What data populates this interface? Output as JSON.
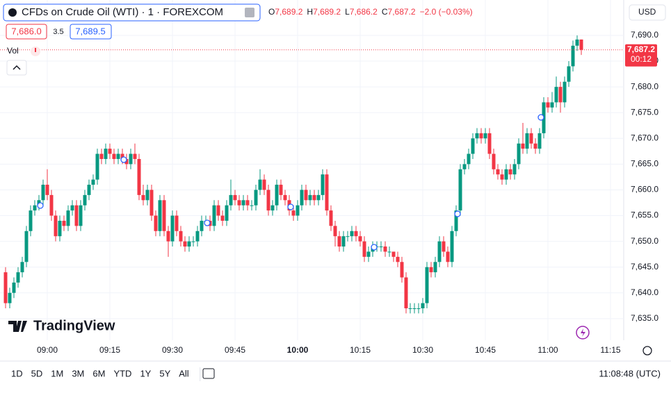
{
  "chart_data": {
    "type": "candlestick",
    "title": "CFDs on Crude Oil (WTI) · 1 · FOREXCOM",
    "categories": [
      null,
      null,
      null,
      null,
      null,
      null,
      null,
      null,
      null,
      null,
      "09:00",
      null,
      null,
      null,
      null,
      null,
      null,
      null,
      null,
      null,
      null,
      null,
      null,
      null,
      null,
      "09:15",
      null,
      null,
      null,
      null,
      null,
      null,
      null,
      null,
      null,
      null,
      null,
      null,
      null,
      null,
      "09:30",
      null,
      null,
      null,
      null,
      null,
      null,
      null,
      null,
      null,
      null,
      null,
      null,
      null,
      null,
      "09:45",
      null,
      null,
      null,
      null,
      null,
      null,
      null,
      null,
      null,
      null,
      null,
      null,
      null,
      null,
      "10:00",
      null,
      null,
      null,
      null,
      null,
      null,
      null,
      null,
      null,
      null,
      null,
      null,
      null,
      null,
      "10:15",
      null,
      null,
      null,
      null,
      null,
      null,
      null,
      null,
      null,
      null,
      null,
      null,
      null,
      null,
      "10:30",
      null,
      null,
      null,
      null,
      null,
      null,
      null,
      null,
      null,
      null,
      null,
      null,
      null,
      null,
      "10:45",
      null,
      null,
      null,
      null,
      null,
      null,
      null,
      null,
      null,
      null,
      null,
      null,
      null,
      null,
      "11:00",
      null,
      null,
      null,
      null,
      null,
      null,
      null,
      null,
      null,
      null,
      null,
      null,
      null,
      null,
      "11:15"
    ],
    "open": [
      7644,
      7638,
      7640,
      7642,
      7644,
      7646,
      7652,
      7656,
      7657,
      7658,
      7661,
      7659,
      7655,
      7651,
      7654,
      7653,
      7656,
      7657,
      7653,
      7657,
      7659,
      7661,
      7662,
      7667,
      7666,
      7668,
      7667,
      7666,
      7667,
      7666,
      7665,
      7667,
      7666,
      7659,
      7658,
      7660,
      7655,
      7652,
      7658,
      7652,
      7650,
      7655,
      7652,
      7650,
      7649,
      7650,
      7650,
      7652,
      7654,
      7654,
      7653,
      7657,
      7655,
      7654,
      7657,
      7659,
      7658,
      7657,
      7658,
      7657,
      7657,
      7660,
      7662,
      7660,
      7656,
      7657,
      7661,
      7659,
      7658,
      7656,
      7655,
      7657,
      7660,
      7658,
      7659,
      7658,
      7659,
      7663,
      7656,
      7653,
      7651,
      7649,
      7651,
      7651,
      7652,
      7651,
      7650,
      7647,
      7648,
      7649,
      7649,
      7649,
      7648,
      7648,
      7647,
      7646,
      7643,
      7637,
      7637,
      7637,
      7637,
      7638,
      7645,
      7644,
      7646,
      7650,
      7648,
      7646,
      7652,
      7656,
      7664,
      7665,
      7667,
      7670,
      7671,
      7670,
      7671,
      7667,
      7664,
      7663,
      7662,
      7664,
      7663,
      7665,
      7669,
      7668,
      7671,
      7669,
      7668,
      7671,
      7677,
      7676,
      7677,
      7680,
      7677,
      7681,
      7684,
      7688,
      7689.2,
      null,
      null,
      null,
      null,
      null,
      null,
      null
    ],
    "high": [
      7645,
      7641,
      7643,
      7645,
      7647,
      7653,
      7657,
      7658,
      7659,
      7662,
      7664,
      7660,
      7656,
      7655,
      7655,
      7657,
      7658,
      7658,
      7658,
      7660,
      7662,
      7663,
      7668,
      7668,
      7669,
      7669,
      7668,
      7668,
      7668,
      7667,
      7668,
      7669,
      7667,
      7661,
      7661,
      7661,
      7656,
      7659,
      7659,
      7653,
      7656,
      7656,
      7653,
      7651,
      7651,
      7651,
      7653,
      7655,
      7655,
      7655,
      7658,
      7658,
      7656,
      7658,
      7662,
      7660,
      7659,
      7659,
      7659,
      7658,
      7661,
      7664,
      7663,
      7661,
      7658,
      7662,
      7662,
      7660,
      7659,
      7657,
      7658,
      7661,
      7661,
      7660,
      7660,
      7660,
      7664,
      7664,
      7657,
      7654,
      7652,
      7652,
      7652,
      7653,
      7653,
      7652,
      7651,
      7649,
      7650,
      7650,
      7650,
      7650,
      7649,
      7648,
      7648,
      7647,
      7644,
      7638,
      7638,
      7638,
      7639,
      7646,
      7646,
      7647,
      7651,
      7651,
      7649,
      7653,
      7657,
      7665,
      7666,
      7668,
      7671,
      7672,
      7672,
      7672,
      7672,
      7668,
      7665,
      7664,
      7665,
      7665,
      7666,
      7670,
      7673,
      7672,
      7672,
      7670,
      7672,
      7678,
      7678,
      7679,
      7682,
      7681,
      7682,
      7685,
      7689,
      7690,
      7689.2,
      null,
      null,
      null,
      null,
      null,
      null,
      null
    ],
    "low": [
      7637,
      7637,
      7639,
      7641,
      7643,
      7645,
      7651,
      7655,
      7656,
      7657,
      7658,
      7654,
      7650,
      7650,
      7652,
      7652,
      7655,
      7652,
      7652,
      7656,
      7658,
      7660,
      7661,
      7665,
      7665,
      7666,
      7665,
      7665,
      7665,
      7664,
      7664,
      7665,
      7658,
      7657,
      7657,
      7654,
      7651,
      7651,
      7651,
      7647,
      7649,
      7651,
      7649,
      7648,
      7648,
      7649,
      7649,
      7651,
      7653,
      7652,
      7652,
      7654,
      7653,
      7653,
      7656,
      7657,
      7656,
      7656,
      7656,
      7656,
      7656,
      7659,
      7659,
      7655,
      7655,
      7656,
      7658,
      7657,
      7655,
      7654,
      7654,
      7656,
      7657,
      7657,
      7657,
      7657,
      7658,
      7655,
      7652,
      7649,
      7648,
      7648,
      7650,
      7650,
      7650,
      7649,
      7646,
      7646,
      7647,
      7648,
      7648,
      7647,
      7647,
      7646,
      7645,
      7642,
      7636,
      7636,
      7636,
      7636,
      7636,
      7637,
      7643,
      7643,
      7645,
      7647,
      7645,
      7645,
      7651,
      7655,
      7663,
      7664,
      7666,
      7669,
      7669,
      7669,
      7666,
      7663,
      7662,
      7661,
      7661,
      7662,
      7662,
      7664,
      7667,
      7667,
      7668,
      7667,
      7667,
      7670,
      7675,
      7675,
      7676,
      7675,
      7676,
      7680,
      7683,
      7687,
      7686.2,
      null,
      null,
      null,
      null,
      null,
      null,
      null
    ],
    "close": [
      7638,
      7640,
      7642,
      7644,
      7646,
      7652,
      7656,
      7657,
      7658,
      7661,
      7659,
      7655,
      7651,
      7654,
      7653,
      7656,
      7657,
      7653,
      7657,
      7659,
      7661,
      7662,
      7667,
      7666,
      7668,
      7667,
      7666,
      7667,
      7666,
      7665,
      7667,
      7666,
      7659,
      7658,
      7660,
      7655,
      7652,
      7658,
      7652,
      7650,
      7655,
      7652,
      7650,
      7649,
      7650,
      7650,
      7652,
      7654,
      7654,
      7653,
      7657,
      7655,
      7654,
      7657,
      7659,
      7658,
      7657,
      7658,
      7657,
      7657,
      7660,
      7662,
      7660,
      7656,
      7657,
      7661,
      7659,
      7658,
      7656,
      7655,
      7657,
      7660,
      7658,
      7659,
      7658,
      7659,
      7663,
      7656,
      7653,
      7651,
      7649,
      7651,
      7651,
      7652,
      7651,
      7650,
      7647,
      7648,
      7649,
      7649,
      7649,
      7648,
      7648,
      7647,
      7646,
      7643,
      7637,
      7637,
      7637,
      7637,
      7638,
      7645,
      7644,
      7646,
      7650,
      7648,
      7646,
      7652,
      7656,
      7664,
      7665,
      7667,
      7670,
      7671,
      7670,
      7671,
      7667,
      7664,
      7663,
      7662,
      7664,
      7663,
      7665,
      7669,
      7668,
      7671,
      7669,
      7668,
      7671,
      7677,
      7676,
      7677,
      7680,
      7677,
      7681,
      7684,
      7688,
      7689.2,
      7687.2,
      null,
      null,
      null,
      null,
      null,
      null,
      null
    ],
    "up_color": "#089981",
    "down_color": "#f23645",
    "ylim": [
      7630.8,
      7696.2
    ],
    "yticks": [
      {
        "value": 7635,
        "label": "7,635.0"
      },
      {
        "value": 7640,
        "label": "7,640.0"
      },
      {
        "value": 7645,
        "label": "7,645.0"
      },
      {
        "value": 7650,
        "label": "7,650.0"
      },
      {
        "value": 7655,
        "label": "7,655.0"
      },
      {
        "value": 7660,
        "label": "7,660.0"
      },
      {
        "value": 7665,
        "label": "7,665.0"
      },
      {
        "value": 7670,
        "label": "7,670.0"
      },
      {
        "value": 7675,
        "label": "7,675.0"
      },
      {
        "value": 7680,
        "label": "7,680.0"
      },
      {
        "value": 7685,
        "label": "7,685.0"
      },
      {
        "value": 7690,
        "label": "7,690.0"
      }
    ],
    "grid": true,
    "legend": [
      {
        "key": "O",
        "value": "7,689.2"
      },
      {
        "key": "H",
        "value": "7,689.2"
      },
      {
        "key": "L",
        "value": "7,686.2"
      },
      {
        "key": "C",
        "value": "7,687.2"
      }
    ],
    "change": "−2.0 (−0.03%)",
    "bid": "7,686.0",
    "spread": "3.5",
    "ask": "7,689.5",
    "last_price_label": "7,687.2",
    "countdown": "00:12",
    "volume_label": "Vol"
  },
  "currency": "USD",
  "brand": "TradingView",
  "timeframes": [
    "1D",
    "5D",
    "1M",
    "3M",
    "6M",
    "YTD",
    "1Y",
    "5Y",
    "All"
  ],
  "clock": "11:08:48 (UTC)"
}
